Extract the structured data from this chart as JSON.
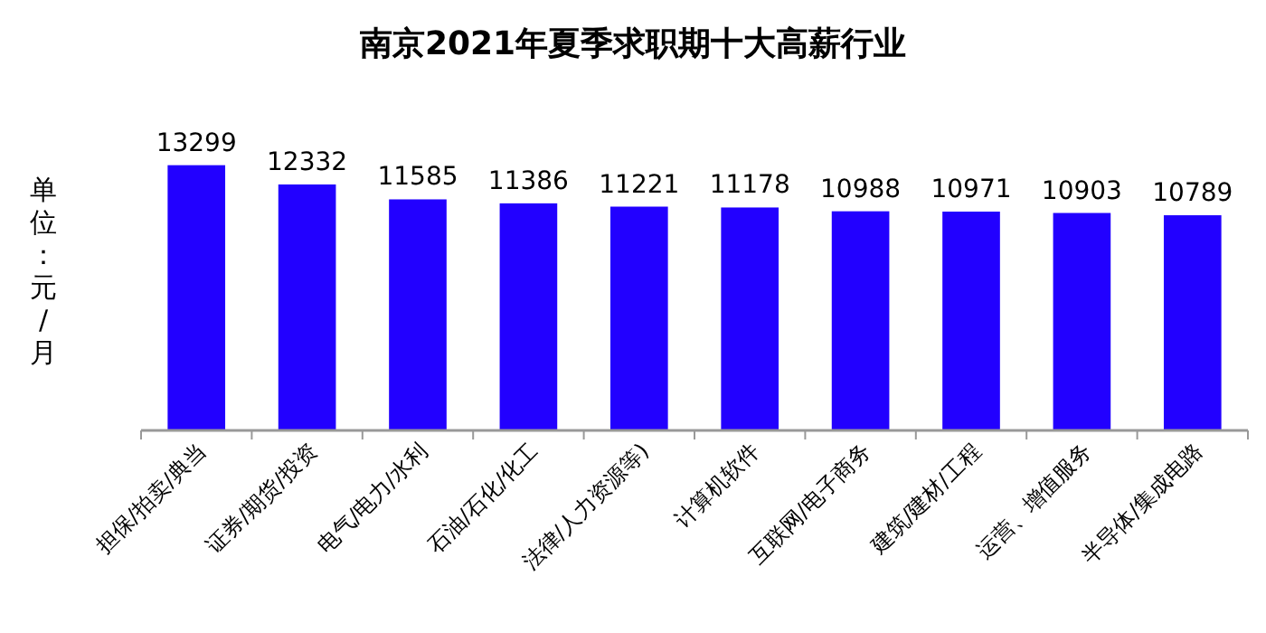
{
  "chart_data": {
    "type": "bar",
    "title": "南京2021年夏季求职期十大高薪行业",
    "ylabel": "单位：元/月",
    "categories": [
      "担保/拍卖/典当",
      "证券/期货/投资",
      "电气/电力/水利",
      "石油/石化/化工",
      "法律/人力资源等)",
      "计算机软件",
      "互联网/电子商务",
      "建筑/建材/工程",
      "运营、增值服务",
      "半导体/集成电路"
    ],
    "values": [
      13299,
      12332,
      11585,
      11386,
      11221,
      11178,
      10988,
      10971,
      10903,
      10789
    ],
    "color": "#2200ff",
    "tick_labels": "x",
    "data_labels": true
  }
}
